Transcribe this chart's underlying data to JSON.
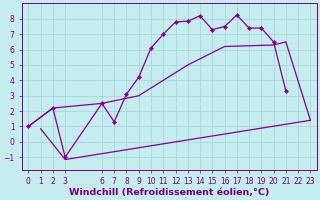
{
  "bg_color": "#c5ecee",
  "grid_color": "#a8d8dc",
  "line_color": "#880088",
  "xlim": [
    -0.5,
    23.5
  ],
  "ylim": [
    -1.8,
    9.0
  ],
  "xticks": [
    0,
    1,
    2,
    3,
    6,
    7,
    8,
    9,
    10,
    11,
    12,
    13,
    14,
    15,
    16,
    17,
    18,
    19,
    20,
    21,
    22,
    23
  ],
  "yticks": [
    -1,
    0,
    1,
    2,
    3,
    4,
    5,
    6,
    7,
    8
  ],
  "line1_x": [
    0,
    2,
    3,
    6,
    7,
    8,
    9,
    10,
    11,
    12,
    13,
    14,
    15,
    16,
    17,
    18,
    19,
    20,
    21
  ],
  "line1_y": [
    1.0,
    2.2,
    -1.0,
    2.5,
    1.3,
    3.1,
    4.2,
    6.1,
    7.0,
    7.8,
    7.85,
    8.2,
    7.3,
    7.5,
    8.25,
    7.4,
    7.4,
    6.5,
    3.3
  ],
  "line2_x": [
    0,
    2,
    6,
    9,
    13,
    16,
    20,
    21,
    23
  ],
  "line2_y": [
    1.0,
    2.2,
    2.5,
    3.0,
    5.0,
    6.2,
    6.3,
    6.5,
    1.4
  ],
  "line3_x": [
    1,
    3,
    23
  ],
  "line3_y": [
    0.85,
    -1.15,
    1.4
  ],
  "xlabel": "Windchill (Refroidissement éolien,°C)",
  "font_color": "#770077",
  "tick_fontsize": 5.5,
  "xlabel_fontsize": 6.8
}
